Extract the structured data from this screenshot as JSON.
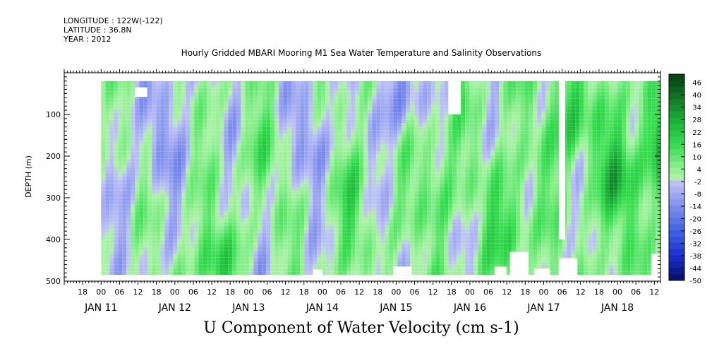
{
  "header": {
    "longitude": "LONGITUDE : 122W(-122)",
    "latitude": "LATITUDE : 36.8N",
    "year": "YEAR : 2012"
  },
  "chart_data": {
    "type": "heatmap",
    "title": "Hourly Gridded MBARI Mooring M1 Sea Water Temperature and Salinity Observations",
    "xlabel": "U Component of Water Velocity (cm s-1)",
    "ylabel": "DEPTH (m)",
    "x_range": [
      "2012-01-10T12:00",
      "2012-01-18T14:00"
    ],
    "data_x_range": [
      "2012-01-11T00:00",
      "2012-01-18T14:00"
    ],
    "ylim": [
      500,
      0
    ],
    "data_depth_range": [
      20,
      485
    ],
    "y_ticks": [
      100,
      200,
      300,
      400,
      500
    ],
    "hour_tick_labels": [
      "18",
      "00",
      "06",
      "12",
      "18",
      "00",
      "06",
      "12",
      "18",
      "00",
      "06",
      "12",
      "18",
      "00",
      "06",
      "12",
      "18",
      "00",
      "06",
      "12",
      "18",
      "00",
      "06",
      "12",
      "18",
      "00",
      "06",
      "12",
      "18",
      "00",
      "06",
      "12"
    ],
    "date_labels": [
      "JAN 11",
      "JAN 12",
      "JAN 13",
      "JAN 14",
      "JAN 15",
      "JAN 16",
      "JAN 17",
      "JAN 18"
    ],
    "colorbar": {
      "levels": [
        46,
        40,
        34,
        28,
        22,
        16,
        10,
        4,
        -2,
        -8,
        -14,
        -20,
        -26,
        -32,
        -38,
        -44,
        -50
      ],
      "level_min": -50,
      "level_max": 50,
      "level_step": 3
    },
    "velocity_pattern": {
      "description": "Alternating positive (green) and negative (blue) U-velocity columns with depth; mostly weak (-14 to +16 cm/s); stronger positive values near bottom on Jan 12 and Jan 16-18; negative band near surface Jan 14-15.",
      "features": [
        {
          "time": "2012-01-11T18:00",
          "depth": 150,
          "u": -12
        },
        {
          "time": "2012-01-12T12:00",
          "depth": 460,
          "u": 20
        },
        {
          "time": "2012-01-13T03:00",
          "depth": 200,
          "u": 8
        },
        {
          "time": "2012-01-13T20:00",
          "depth": 150,
          "u": -14
        },
        {
          "time": "2012-01-14T08:00",
          "depth": 300,
          "u": 10
        },
        {
          "time": "2012-01-15T00:00",
          "depth": 50,
          "u": -18
        },
        {
          "time": "2012-01-15T12:00",
          "depth": 250,
          "u": 12
        },
        {
          "time": "2012-01-16T12:00",
          "depth": 350,
          "u": 16
        },
        {
          "time": "2012-01-17T08:00",
          "depth": 100,
          "u": 20
        },
        {
          "time": "2012-01-18T00:00",
          "depth": 250,
          "u": 22
        },
        {
          "time": "2012-01-18T12:00",
          "depth": 150,
          "u": 18
        }
      ]
    },
    "missing_blocks": [
      {
        "t0": "2012-01-11T11:00",
        "t1": "2012-01-11T15:00",
        "d0": 35,
        "d1": 58
      },
      {
        "t0": "2012-01-15T17:00",
        "t1": "2012-01-15T21:00",
        "d0": 20,
        "d1": 100
      },
      {
        "t0": "2012-01-16T08:00",
        "t1": "2012-01-16T12:00",
        "d0": 465,
        "d1": 485
      },
      {
        "t0": "2012-01-16T13:00",
        "t1": "2012-01-16T19:00",
        "d0": 430,
        "d1": 485
      },
      {
        "t0": "2012-01-16T21:00",
        "t1": "2012-01-17T02:00",
        "d0": 470,
        "d1": 485
      },
      {
        "t0": "2012-01-17T05:00",
        "t1": "2012-01-17T07:00",
        "d0": 20,
        "d1": 400
      },
      {
        "t0": "2012-01-17T05:00",
        "t1": "2012-01-17T11:00",
        "d0": 445,
        "d1": 485
      },
      {
        "t0": "2012-01-13T21:00",
        "t1": "2012-01-14T00:00",
        "d0": 472,
        "d1": 485
      },
      {
        "t0": "2012-01-14T23:00",
        "t1": "2012-01-15T05:00",
        "d0": 465,
        "d1": 485
      },
      {
        "t0": "2012-01-18T11:00",
        "t1": "2012-01-18T14:00",
        "d0": 435,
        "d1": 485
      }
    ]
  },
  "colors": {
    "negative_strong": "#0a1a6e",
    "negative_mid": "#2f56d8",
    "negative_weak": "#9fa7ea",
    "positive_weak": "#9ff29c",
    "positive_mid": "#2ad64a",
    "positive_strong": "#0f5a22"
  }
}
